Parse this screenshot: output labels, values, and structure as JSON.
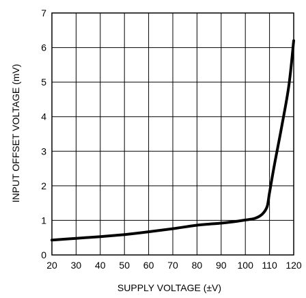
{
  "chart_data": {
    "type": "line",
    "title": "",
    "xlabel": "SUPPLY VOLTAGE (±V)",
    "ylabel": "INPUT OFFSET VOLTAGE (mV)",
    "xlim": [
      20,
      120
    ],
    "ylim": [
      0,
      7
    ],
    "xticks": [
      20,
      30,
      40,
      50,
      60,
      70,
      80,
      90,
      100,
      110,
      120
    ],
    "yticks": [
      0,
      1,
      2,
      3,
      4,
      5,
      6,
      7
    ],
    "grid": true,
    "legend": "none",
    "line_color": "#000000",
    "series": [
      {
        "x": [
          20,
          30,
          40,
          50,
          60,
          70,
          80,
          90,
          95,
          100,
          104,
          107,
          109,
          110,
          112,
          115,
          118,
          120
        ],
        "y": [
          0.43,
          0.48,
          0.53,
          0.59,
          0.67,
          0.76,
          0.86,
          0.92,
          0.96,
          1.01,
          1.06,
          1.18,
          1.4,
          1.8,
          2.6,
          3.7,
          4.9,
          6.2
        ]
      }
    ]
  }
}
